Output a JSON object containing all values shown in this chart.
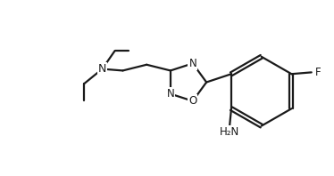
{
  "background_color": "#ffffff",
  "line_color": "#1a1a1a",
  "line_width": 1.6,
  "font_size": 8.5,
  "figsize": [
    3.74,
    1.98
  ],
  "dpi": 100,
  "xlim": [
    0,
    10
  ],
  "ylim": [
    0,
    5.3
  ]
}
